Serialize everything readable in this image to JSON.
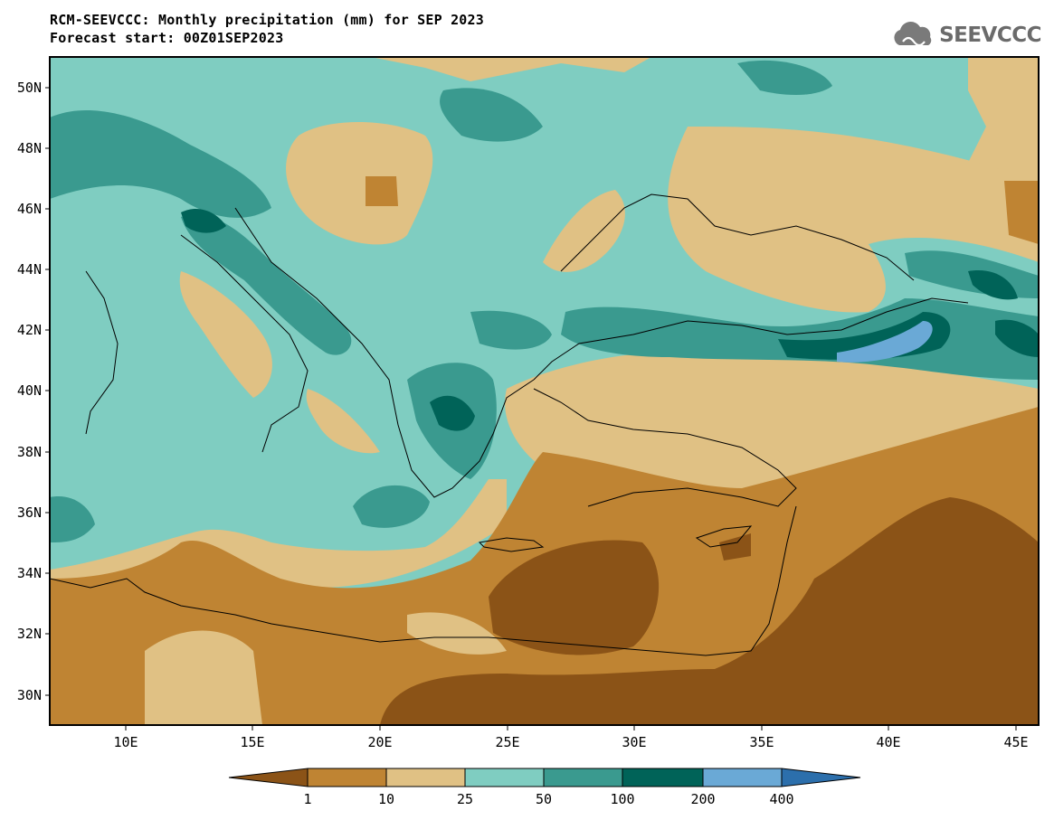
{
  "header": {
    "title_line1": "RCM-SEEVCCC: Monthly precipitation (mm) for SEP 2023",
    "title_line2": "Forecast start: 00Z01SEP2023"
  },
  "logo": {
    "text": "SEEVCCC",
    "icon": "cloud-icon"
  },
  "map": {
    "lat_labels": [
      "50N",
      "48N",
      "46N",
      "44N",
      "42N",
      "40N",
      "38N",
      "36N",
      "34N",
      "32N",
      "30N"
    ],
    "lon_labels": [
      "10E",
      "15E",
      "20E",
      "25E",
      "30E",
      "35E",
      "40E",
      "45E"
    ]
  },
  "colorbar": {
    "levels": [
      "1",
      "10",
      "25",
      "50",
      "100",
      "200",
      "400"
    ],
    "colors": [
      "#8b5317",
      "#bf8433",
      "#e0c184",
      "#7fcdc1",
      "#3a9a8f",
      "#006358",
      "#6aa9d6",
      "#2c6fac"
    ]
  }
}
